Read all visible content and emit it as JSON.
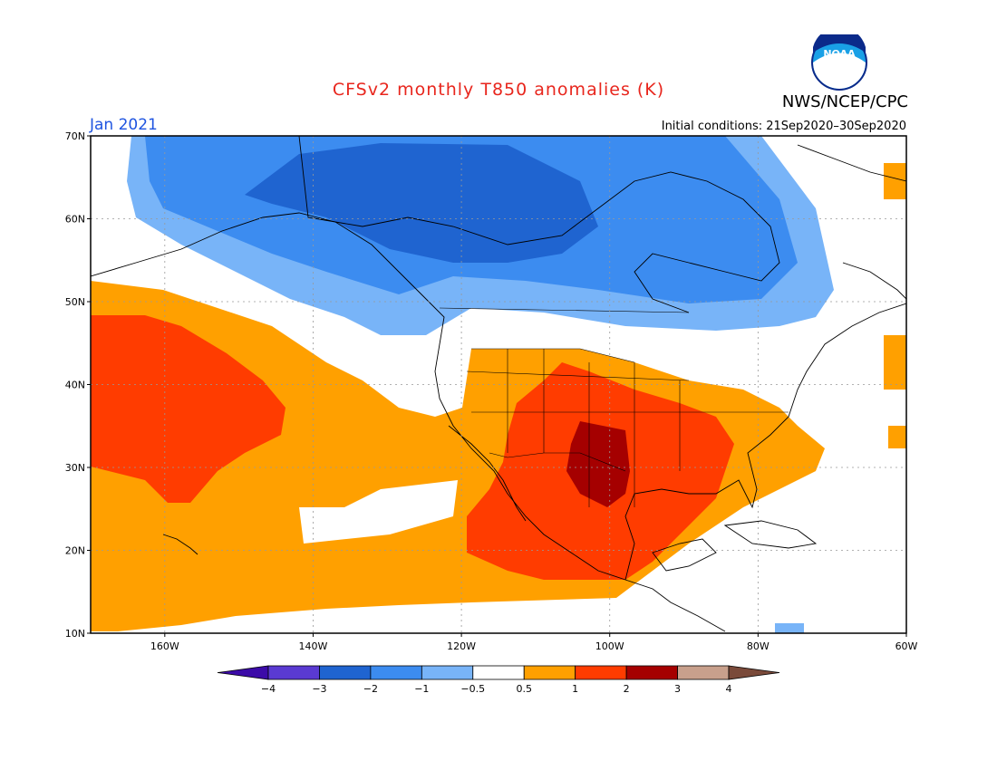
{
  "title": "CFSv2 monthly T850 anomalies (K)",
  "agency": "NWS/NCEP/CPC",
  "logo_text": "NOAA",
  "valid_month": "Jan 2021",
  "initial_conditions": "Initial conditions: 21Sep2020–30Sep2020",
  "map": {
    "lon_range": [
      -170,
      -60
    ],
    "lat_range": [
      10,
      70
    ],
    "lat_labels": [
      "10N",
      "20N",
      "30N",
      "40N",
      "50N",
      "60N",
      "70N"
    ],
    "lon_labels": [
      "160W",
      "140W",
      "120W",
      "100W",
      "80W",
      "60W"
    ]
  },
  "colorbar": {
    "labels": [
      "−4",
      "−3",
      "−2",
      "−1",
      "−0.5",
      "0.5",
      "1",
      "2",
      "3",
      "4"
    ],
    "colors": [
      "#3c0ba8",
      "#5a3ad2",
      "#1f64d0",
      "#3c8cf0",
      "#78b4f8",
      "#ffffff",
      "#ffa000",
      "#ff3c00",
      "#a50000",
      "#c8a08c",
      "#7a4a3a"
    ]
  }
}
